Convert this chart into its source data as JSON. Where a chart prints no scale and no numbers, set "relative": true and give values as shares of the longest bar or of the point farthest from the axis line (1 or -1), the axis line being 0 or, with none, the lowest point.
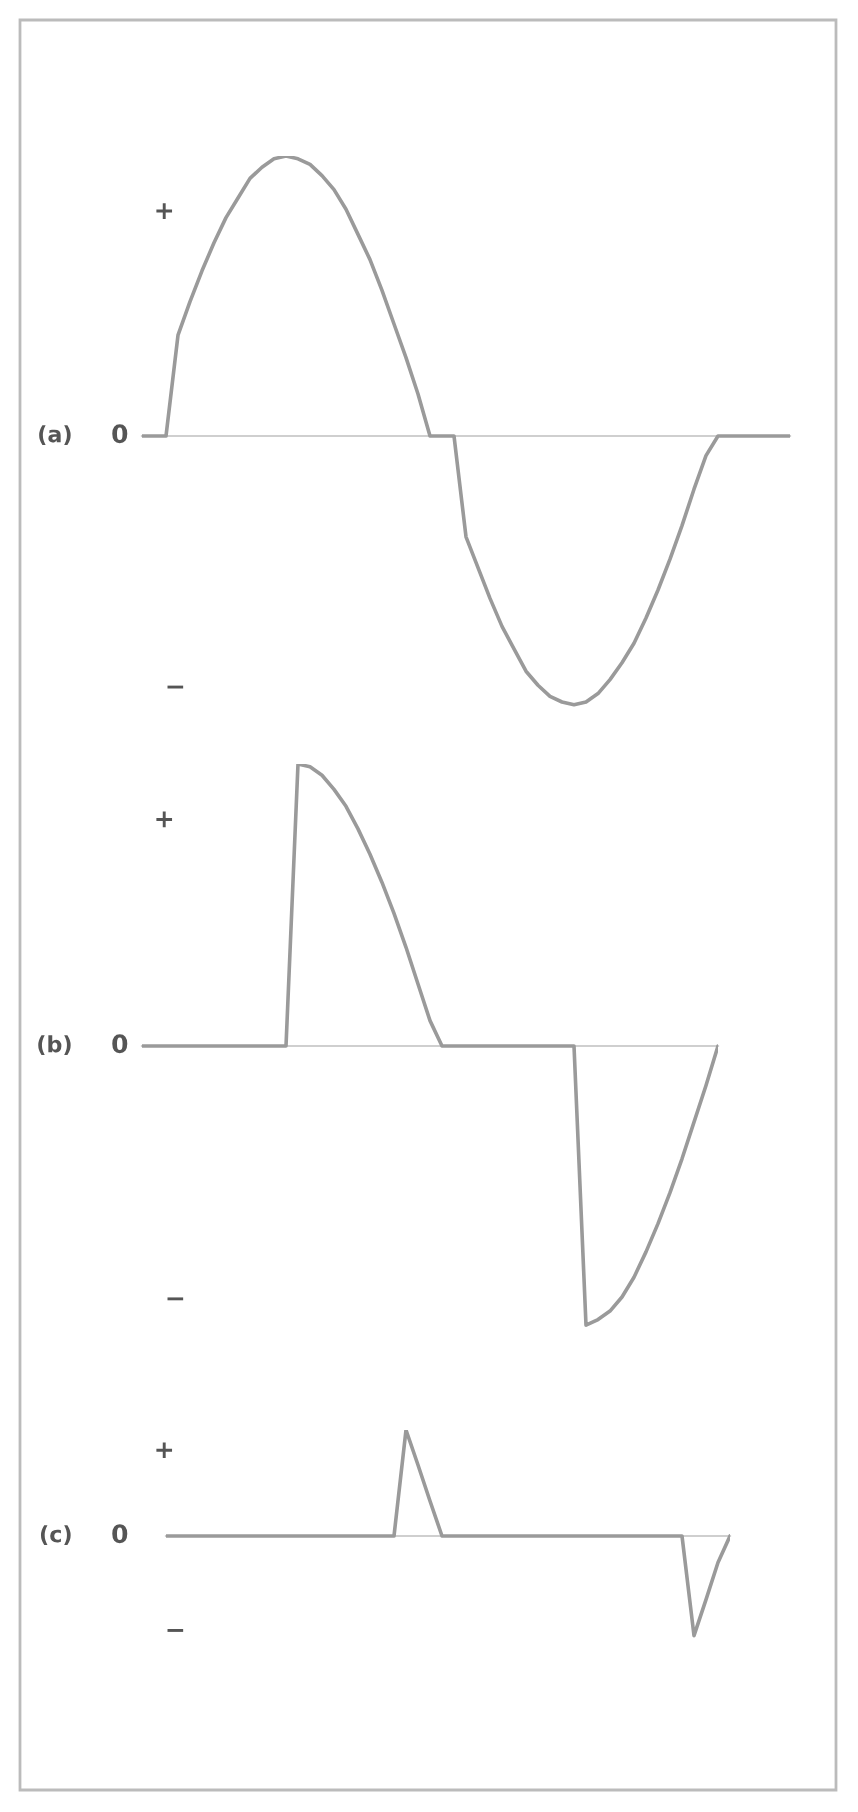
{
  "chart_data": [
    {
      "type": "line",
      "ylabel": "(a)",
      "annotations": [
        "+",
        "0",
        "−"
      ],
      "relative": true,
      "categories": [
        null,
        null,
        null,
        null,
        null,
        null,
        null,
        null,
        null,
        null,
        null,
        null,
        null,
        null,
        null,
        null,
        null,
        null,
        null,
        null,
        null,
        null,
        null,
        null,
        null,
        null,
        null,
        null,
        null,
        null,
        null,
        null,
        null,
        null,
        null,
        null,
        null,
        null,
        null,
        null,
        null,
        null,
        null,
        null,
        null,
        null,
        null,
        null,
        null,
        null,
        null,
        null,
        null,
        null,
        null
      ],
      "series": [
        {
          "color": "#9a9a9a",
          "values": [
            0,
            0,
            0,
            0.36,
            0.48,
            0.59,
            0.69,
            0.78,
            0.85,
            0.92,
            0.96,
            0.99,
            1.0,
            0.99,
            0.97,
            0.93,
            0.88,
            0.81,
            0.72,
            0.63,
            0.52,
            0.4,
            0.28,
            0.15,
            0,
            0,
            0,
            -0.36,
            -0.47,
            -0.58,
            -0.68,
            -0.76,
            -0.84,
            -0.89,
            -0.93,
            -0.95,
            -0.96,
            -0.95,
            -0.92,
            -0.87,
            -0.81,
            -0.74,
            -0.65,
            -0.55,
            -0.44,
            -0.32,
            -0.19,
            -0.07,
            0,
            0,
            0,
            0,
            0,
            0,
            0
          ]
        }
      ]
    },
    {
      "type": "line",
      "ylabel": "(b)",
      "annotations": [
        "+",
        "0",
        "−"
      ],
      "relative": true,
      "categories": [
        null,
        null,
        null,
        null,
        null,
        null,
        null,
        null,
        null,
        null,
        null,
        null,
        null,
        null,
        null,
        null,
        null,
        null,
        null,
        null,
        null,
        null,
        null,
        null,
        null,
        null,
        null,
        null,
        null,
        null,
        null,
        null,
        null,
        null,
        null,
        null,
        null,
        null,
        null,
        null,
        null,
        null,
        null,
        null,
        null,
        null,
        null,
        null,
        null
      ],
      "series": [
        {
          "color": "#9a9a9a",
          "values": [
            0,
            0,
            0,
            0,
            0,
            0,
            0,
            0,
            0,
            0,
            0,
            0,
            0,
            1.0,
            0.99,
            0.96,
            0.91,
            0.85,
            0.77,
            0.68,
            0.58,
            0.47,
            0.35,
            0.22,
            0.09,
            0,
            0,
            0,
            0,
            0,
            0,
            0,
            0,
            0,
            0,
            0,
            0,
            -0.99,
            -0.97,
            -0.94,
            -0.89,
            -0.82,
            -0.73,
            -0.63,
            -0.52,
            -0.4,
            -0.27,
            -0.14,
            0
          ]
        }
      ]
    },
    {
      "type": "line",
      "ylabel": "(c)",
      "annotations": [
        "+",
        "0",
        "−"
      ],
      "relative": true,
      "categories": [
        null,
        null,
        null,
        null,
        null,
        null,
        null,
        null,
        null,
        null,
        null,
        null,
        null,
        null,
        null,
        null,
        null,
        null,
        null,
        null,
        null,
        null,
        null,
        null,
        null,
        null,
        null,
        null,
        null,
        null,
        null,
        null,
        null,
        null,
        null,
        null,
        null,
        null,
        null,
        null,
        null,
        null,
        null,
        null,
        null,
        null,
        null,
        null
      ],
      "series": [
        {
          "color": "#9a9a9a",
          "values": [
            0,
            0,
            0,
            0,
            0,
            0,
            0,
            0,
            0,
            0,
            0,
            0,
            0,
            0,
            0,
            0,
            0,
            0,
            0,
            0,
            1.0,
            0.67,
            0.33,
            0,
            0,
            0,
            0,
            0,
            0,
            0,
            0,
            0,
            0,
            0,
            0,
            0,
            0,
            0,
            0,
            0,
            0,
            0,
            0,
            0,
            -0.94,
            -0.6,
            -0.25,
            0
          ]
        }
      ]
    }
  ]
}
